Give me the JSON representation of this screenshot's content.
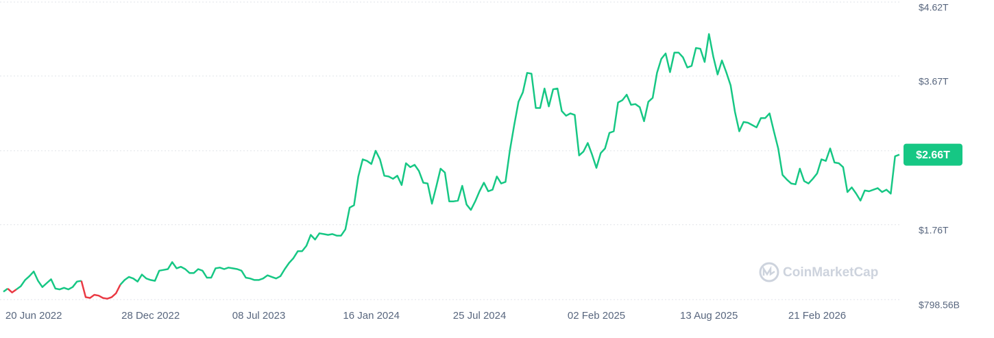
{
  "chart_data": {
    "type": "line",
    "categories": [
      null,
      null,
      null,
      null,
      null,
      null,
      null,
      "20 Jun 2022",
      null,
      null,
      null,
      null,
      null,
      null,
      null,
      null,
      null,
      null,
      null,
      null,
      null,
      null,
      null,
      null,
      null,
      null,
      null,
      null,
      null,
      null,
      null,
      null,
      null,
      null,
      "28 Dec 2022",
      null,
      null,
      null,
      null,
      null,
      null,
      null,
      null,
      null,
      null,
      null,
      null,
      null,
      null,
      null,
      null,
      null,
      null,
      null,
      null,
      null,
      null,
      null,
      null,
      "08 Jul 2023",
      null,
      null,
      null,
      null,
      null,
      null,
      null,
      null,
      null,
      null,
      null,
      null,
      null,
      null,
      null,
      null,
      null,
      null,
      null,
      null,
      null,
      null,
      null,
      null,
      null,
      "16 Jan 2024",
      null,
      null,
      null,
      null,
      null,
      null,
      null,
      null,
      null,
      null,
      null,
      null,
      null,
      null,
      null,
      null,
      null,
      null,
      null,
      null,
      null,
      null,
      null,
      null,
      "25 Jul 2024",
      null,
      null,
      null,
      null,
      null,
      null,
      null,
      null,
      null,
      null,
      null,
      null,
      null,
      null,
      null,
      null,
      null,
      null,
      null,
      null,
      null,
      null,
      null,
      null,
      null,
      null,
      "02 Feb 2025",
      null,
      null,
      null,
      null,
      null,
      null,
      null,
      null,
      null,
      null,
      null,
      null,
      null,
      null,
      null,
      null,
      null,
      null,
      null,
      null,
      null,
      null,
      null,
      null,
      null,
      "13 Aug 2025",
      null,
      null,
      null,
      null,
      null,
      null,
      null,
      null,
      null,
      null,
      null,
      null,
      null,
      null,
      null,
      null,
      null,
      null,
      null,
      null,
      null,
      null,
      null,
      null,
      "21 Feb 2026",
      null,
      null,
      null,
      null,
      null,
      null,
      null,
      null,
      null,
      null,
      null,
      null,
      null,
      null,
      null,
      null,
      null,
      null,
      null
    ],
    "values": [
      0.9,
      0.94,
      0.89,
      0.93,
      0.97,
      1.05,
      1.1,
      1.16,
      1.04,
      0.96,
      1.01,
      1.06,
      0.94,
      0.93,
      0.95,
      0.93,
      0.96,
      1.03,
      1.04,
      0.83,
      0.82,
      0.86,
      0.85,
      0.82,
      0.81,
      0.83,
      0.88,
      0.99,
      1.05,
      1.09,
      1.07,
      1.03,
      1.12,
      1.07,
      1.05,
      1.04,
      1.17,
      1.18,
      1.19,
      1.28,
      1.2,
      1.22,
      1.19,
      1.14,
      1.14,
      1.19,
      1.17,
      1.08,
      1.08,
      1.2,
      1.21,
      1.19,
      1.21,
      1.2,
      1.19,
      1.17,
      1.08,
      1.07,
      1.05,
      1.05,
      1.07,
      1.11,
      1.09,
      1.07,
      1.1,
      1.19,
      1.27,
      1.33,
      1.42,
      1.42,
      1.49,
      1.63,
      1.57,
      1.65,
      1.64,
      1.63,
      1.64,
      1.62,
      1.62,
      1.7,
      1.98,
      2.01,
      2.38,
      2.6,
      2.58,
      2.54,
      2.71,
      2.6,
      2.39,
      2.38,
      2.35,
      2.39,
      2.27,
      2.55,
      2.5,
      2.53,
      2.45,
      2.3,
      2.29,
      2.03,
      2.25,
      2.48,
      2.43,
      2.06,
      2.06,
      2.07,
      2.26,
      2.02,
      1.95,
      2.06,
      2.19,
      2.3,
      2.19,
      2.21,
      2.38,
      2.29,
      2.31,
      2.71,
      3.04,
      3.34,
      3.46,
      3.71,
      3.7,
      3.26,
      3.26,
      3.51,
      3.28,
      3.5,
      3.51,
      3.22,
      3.16,
      3.19,
      3.17,
      2.65,
      2.7,
      2.81,
      2.66,
      2.49,
      2.68,
      2.74,
      2.94,
      2.96,
      3.33,
      3.36,
      3.43,
      3.3,
      3.31,
      3.27,
      3.09,
      3.34,
      3.39,
      3.71,
      3.89,
      3.96,
      3.72,
      3.97,
      3.97,
      3.91,
      3.78,
      3.8,
      4.03,
      4.02,
      3.85,
      4.21,
      3.92,
      3.69,
      3.87,
      3.72,
      3.55,
      3.21,
      2.96,
      3.08,
      3.07,
      3.04,
      3.01,
      3.13,
      3.13,
      3.19,
      2.96,
      2.74,
      2.4,
      2.34,
      2.29,
      2.28,
      2.48,
      2.32,
      2.29,
      2.35,
      2.42,
      2.6,
      2.58,
      2.74,
      2.56,
      2.55,
      2.5,
      2.18,
      2.24,
      2.16,
      2.07,
      2.2,
      2.19,
      2.21,
      2.23,
      2.18,
      2.21,
      2.16,
      2.64,
      2.66
    ],
    "colors": {
      "up": "#16c784",
      "down": "#ea3943"
    },
    "current_value_label": "$2.66T",
    "ylim": [
      0.79856,
      4.62
    ],
    "yticks": [
      {
        "value": 0.79856,
        "label": "$798.56B"
      },
      {
        "value": 1.76,
        "label": "$1.76T"
      },
      2.71,
      {
        "value": 3.67,
        "label": "$3.67T"
      },
      {
        "value": 4.62,
        "label": "$4.62T"
      }
    ],
    "grid": true,
    "watermark": "CoinMarketCap"
  }
}
